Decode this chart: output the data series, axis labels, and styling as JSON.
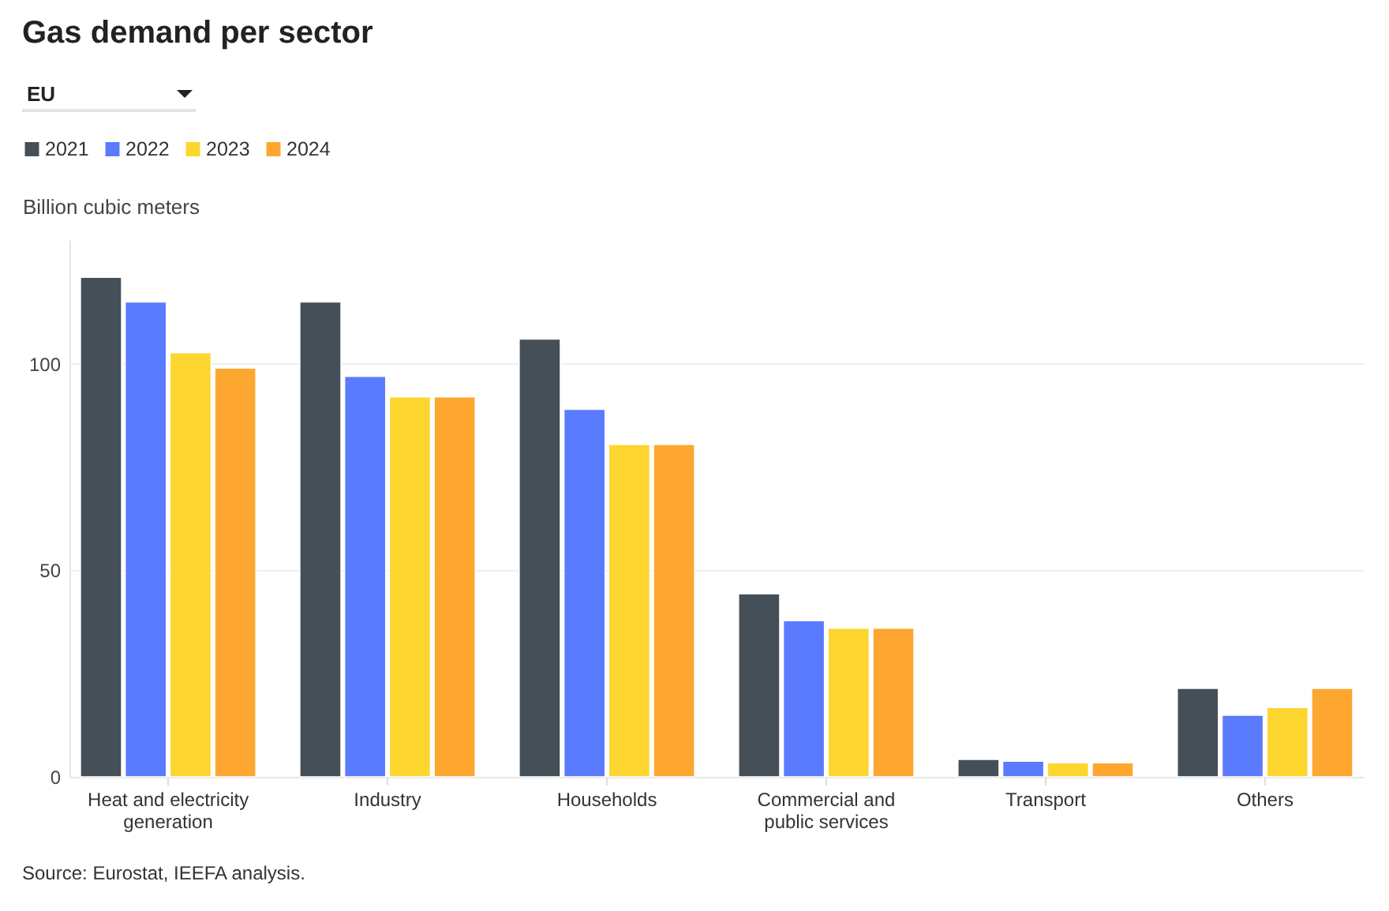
{
  "chart_data": {
    "type": "bar",
    "title": "Gas demand per sector",
    "subtitle": "EU",
    "ylabel": "Billion cubic meters",
    "categories": [
      "Heat and electricity generation",
      "Industry",
      "Households",
      "Commercial and public services",
      "Transport",
      "Others"
    ],
    "series": [
      {
        "name": "2021",
        "color": "#454f57",
        "values": [
          121,
          115,
          106,
          44.3,
          4.2,
          21.4
        ]
      },
      {
        "name": "2022",
        "color": "#5b7bfe",
        "values": [
          115,
          97,
          89,
          37.8,
          3.8,
          14.9
        ]
      },
      {
        "name": "2023",
        "color": "#fdd52f",
        "values": [
          102.7,
          92,
          80.5,
          36,
          3.4,
          16.8
        ]
      },
      {
        "name": "2024",
        "color": "#fda730",
        "values": [
          99,
          92,
          80.5,
          36,
          3.4,
          21.4
        ]
      }
    ],
    "ylim": [
      0,
      130
    ],
    "yticks": [
      0,
      50,
      100
    ],
    "grid": "y",
    "legend": "top left",
    "annotations": [
      "Source: Eurostat, IEEFA analysis."
    ]
  }
}
